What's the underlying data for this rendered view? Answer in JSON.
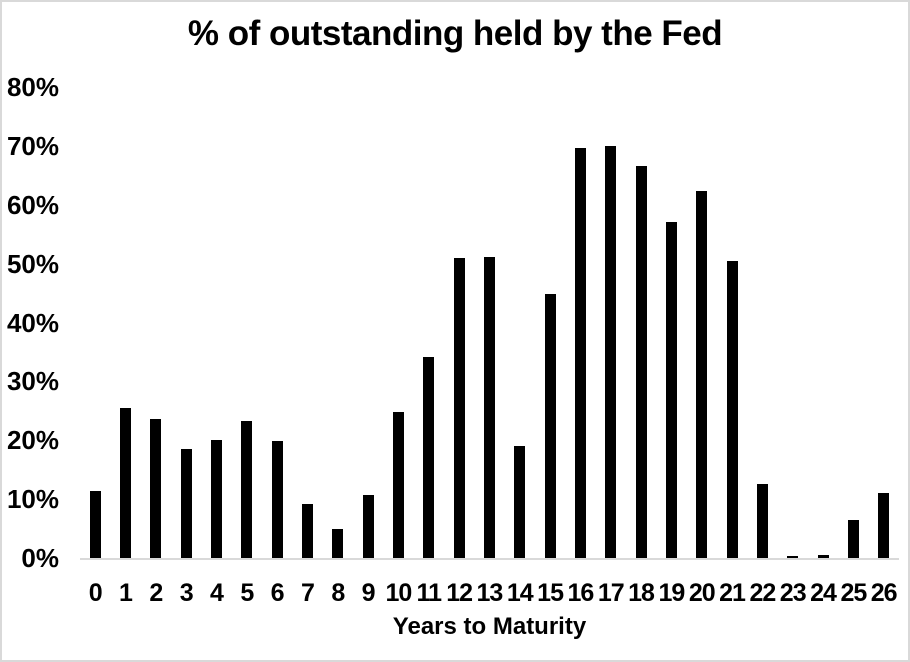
{
  "chart_data": {
    "type": "bar",
    "title": "% of outstanding held by the Fed",
    "xlabel": "Years to Maturity",
    "ylabel": "",
    "categories": [
      "0",
      "1",
      "2",
      "3",
      "4",
      "5",
      "6",
      "7",
      "8",
      "9",
      "10",
      "11",
      "12",
      "13",
      "14",
      "15",
      "16",
      "17",
      "18",
      "19",
      "20",
      "21",
      "22",
      "23",
      "24",
      "25",
      "26"
    ],
    "values": [
      11.3,
      25.5,
      23.6,
      18.6,
      20.1,
      23.3,
      19.8,
      9.2,
      4.9,
      10.7,
      24.8,
      34.1,
      50.9,
      51.1,
      19.1,
      44.8,
      69.6,
      69.9,
      66.6,
      57.1,
      62.3,
      50.5,
      12.5,
      0.3,
      0.5,
      6.5,
      11.0
    ],
    "ylim": [
      0,
      80
    ],
    "ytick_labels": [
      "80%",
      "70%",
      "60%",
      "50%",
      "40%",
      "30%",
      "20%",
      "10%",
      "0%"
    ],
    "grid": false,
    "legend": null,
    "colors": {
      "bar": "#000000",
      "axis_line": "#d9d9d9",
      "border": "#d9d9d9",
      "text": "#000000"
    }
  }
}
